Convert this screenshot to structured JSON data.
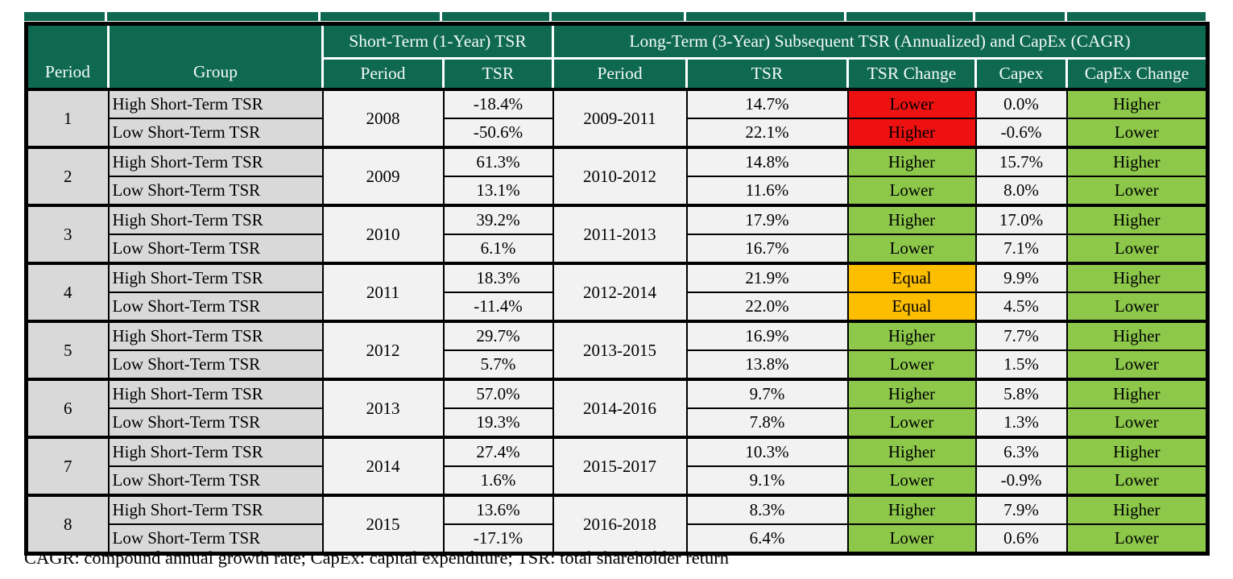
{
  "colors": {
    "header_green": "#0E6950",
    "highlight_green": "#8DC84B",
    "highlight_red": "#EE1111",
    "highlight_orange": "#FDBE00",
    "row_gray": "#D9D9D9",
    "cell_light": "#F2F2F2"
  },
  "chart_data": {
    "type": "table",
    "header": {
      "row1": [
        "Period",
        "Group",
        "Short-Term (1-Year) TSR",
        "Long-Term (3-Year) Subsequent TSR (Annualized) and CapEx (CAGR)"
      ],
      "row2": [
        "Period",
        "TSR",
        "Period",
        "TSR",
        "TSR Change",
        "Capex",
        "CapEx Change"
      ]
    },
    "periods": [
      {
        "period": "1",
        "short_term_period": "2008",
        "long_term_period": "2009-2011",
        "high": {
          "group": "High Short-Term TSR",
          "short_term_tsr": "-18.4%",
          "long_term_tsr": "14.7%",
          "tsr_change": "Lower",
          "tsr_change_color": "red",
          "capex": "0.0%",
          "capex_change": "Higher",
          "capex_change_color": "green"
        },
        "low": {
          "group": "Low Short-Term TSR",
          "short_term_tsr": "-50.6%",
          "long_term_tsr": "22.1%",
          "tsr_change": "Higher",
          "tsr_change_color": "red",
          "capex": "-0.6%",
          "capex_change": "Lower",
          "capex_change_color": "green"
        }
      },
      {
        "period": "2",
        "short_term_period": "2009",
        "long_term_period": "2010-2012",
        "high": {
          "group": "High Short-Term TSR",
          "short_term_tsr": "61.3%",
          "long_term_tsr": "14.8%",
          "tsr_change": "Higher",
          "tsr_change_color": "green",
          "capex": "15.7%",
          "capex_change": "Higher",
          "capex_change_color": "green"
        },
        "low": {
          "group": "Low Short-Term TSR",
          "short_term_tsr": "13.1%",
          "long_term_tsr": "11.6%",
          "tsr_change": "Lower",
          "tsr_change_color": "green",
          "capex": "8.0%",
          "capex_change": "Lower",
          "capex_change_color": "green"
        }
      },
      {
        "period": "3",
        "short_term_period": "2010",
        "long_term_period": "2011-2013",
        "high": {
          "group": "High Short-Term TSR",
          "short_term_tsr": "39.2%",
          "long_term_tsr": "17.9%",
          "tsr_change": "Higher",
          "tsr_change_color": "green",
          "capex": "17.0%",
          "capex_change": "Higher",
          "capex_change_color": "green"
        },
        "low": {
          "group": "Low Short-Term TSR",
          "short_term_tsr": "6.1%",
          "long_term_tsr": "16.7%",
          "tsr_change": "Lower",
          "tsr_change_color": "green",
          "capex": "7.1%",
          "capex_change": "Lower",
          "capex_change_color": "green"
        }
      },
      {
        "period": "4",
        "short_term_period": "2011",
        "long_term_period": "2012-2014",
        "high": {
          "group": "High Short-Term TSR",
          "short_term_tsr": "18.3%",
          "long_term_tsr": "21.9%",
          "tsr_change": "Equal",
          "tsr_change_color": "orange",
          "capex": "9.9%",
          "capex_change": "Higher",
          "capex_change_color": "green"
        },
        "low": {
          "group": "Low Short-Term TSR",
          "short_term_tsr": "-11.4%",
          "long_term_tsr": "22.0%",
          "tsr_change": "Equal",
          "tsr_change_color": "orange",
          "capex": "4.5%",
          "capex_change": "Lower",
          "capex_change_color": "green"
        }
      },
      {
        "period": "5",
        "short_term_period": "2012",
        "long_term_period": "2013-2015",
        "high": {
          "group": "High Short-Term TSR",
          "short_term_tsr": "29.7%",
          "long_term_tsr": "16.9%",
          "tsr_change": "Higher",
          "tsr_change_color": "green",
          "capex": "7.7%",
          "capex_change": "Higher",
          "capex_change_color": "green"
        },
        "low": {
          "group": "Low Short-Term TSR",
          "short_term_tsr": "5.7%",
          "long_term_tsr": "13.8%",
          "tsr_change": "Lower",
          "tsr_change_color": "green",
          "capex": "1.5%",
          "capex_change": "Lower",
          "capex_change_color": "green"
        }
      },
      {
        "period": "6",
        "short_term_period": "2013",
        "long_term_period": "2014-2016",
        "high": {
          "group": "High Short-Term TSR",
          "short_term_tsr": "57.0%",
          "long_term_tsr": "9.7%",
          "tsr_change": "Higher",
          "tsr_change_color": "green",
          "capex": "5.8%",
          "capex_change": "Higher",
          "capex_change_color": "green"
        },
        "low": {
          "group": "Low Short-Term TSR",
          "short_term_tsr": "19.3%",
          "long_term_tsr": "7.8%",
          "tsr_change": "Lower",
          "tsr_change_color": "green",
          "capex": "1.3%",
          "capex_change": "Lower",
          "capex_change_color": "green"
        }
      },
      {
        "period": "7",
        "short_term_period": "2014",
        "long_term_period": "2015-2017",
        "high": {
          "group": "High Short-Term TSR",
          "short_term_tsr": "27.4%",
          "long_term_tsr": "10.3%",
          "tsr_change": "Higher",
          "tsr_change_color": "green",
          "capex": "6.3%",
          "capex_change": "Higher",
          "capex_change_color": "green"
        },
        "low": {
          "group": "Low Short-Term TSR",
          "short_term_tsr": "1.6%",
          "long_term_tsr": "9.1%",
          "tsr_change": "Lower",
          "tsr_change_color": "green",
          "capex": "-0.9%",
          "capex_change": "Lower",
          "capex_change_color": "green"
        }
      },
      {
        "period": "8",
        "short_term_period": "2015",
        "long_term_period": "2016-2018",
        "high": {
          "group": "High Short-Term TSR",
          "short_term_tsr": "13.6%",
          "long_term_tsr": "8.3%",
          "tsr_change": "Higher",
          "tsr_change_color": "green",
          "capex": "7.9%",
          "capex_change": "Higher",
          "capex_change_color": "green"
        },
        "low": {
          "group": "Low Short-Term TSR",
          "short_term_tsr": "-17.1%",
          "long_term_tsr": "6.4%",
          "tsr_change": "Lower",
          "tsr_change_color": "green",
          "capex": "0.6%",
          "capex_change": "Lower",
          "capex_change_color": "green"
        }
      }
    ],
    "footnote": "CAGR: compound annual growth rate; CapEx: capital expenditure; TSR: total shareholder return"
  }
}
